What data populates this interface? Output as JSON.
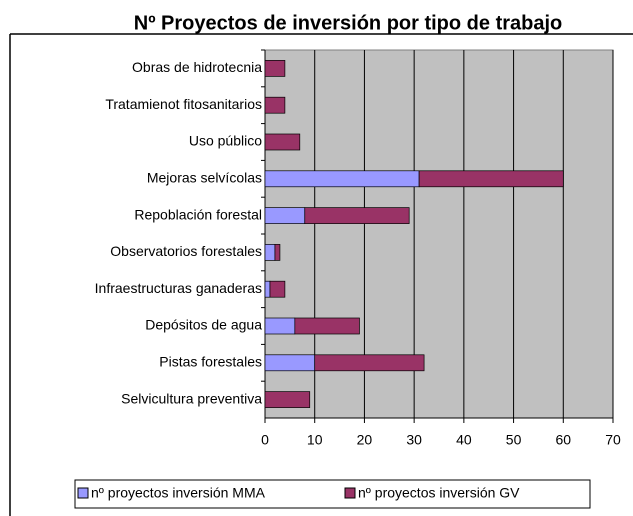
{
  "chart_data": {
    "type": "bar",
    "orientation": "horizontal",
    "stacked": true,
    "title": "Nº Proyectos de inversión por tipo de trabajo",
    "categories": [
      "Obras de hidrotecnia",
      "Tratamienot fitosanitarios",
      "Uso público",
      "Mejoras selvícolas",
      "Repoblación forestal",
      "Observatorios forestales",
      "Infraestructuras ganaderas",
      "Depósitos de agua",
      "Pistas forestales",
      "Selvicultura preventiva"
    ],
    "series": [
      {
        "name": "nº proyectos inversión MMA",
        "color": "#9999ff",
        "values": [
          0,
          0,
          0,
          31,
          8,
          2,
          1,
          6,
          10,
          0
        ]
      },
      {
        "name": "nº proyectos inversión GV",
        "color": "#993366",
        "values": [
          4,
          4,
          7,
          29,
          21,
          1,
          3,
          13,
          22,
          9
        ]
      }
    ],
    "xlim": [
      0,
      70
    ],
    "xticks": [
      0,
      10,
      20,
      30,
      40,
      50,
      60,
      70
    ],
    "grid": true,
    "legend": "bottom"
  }
}
